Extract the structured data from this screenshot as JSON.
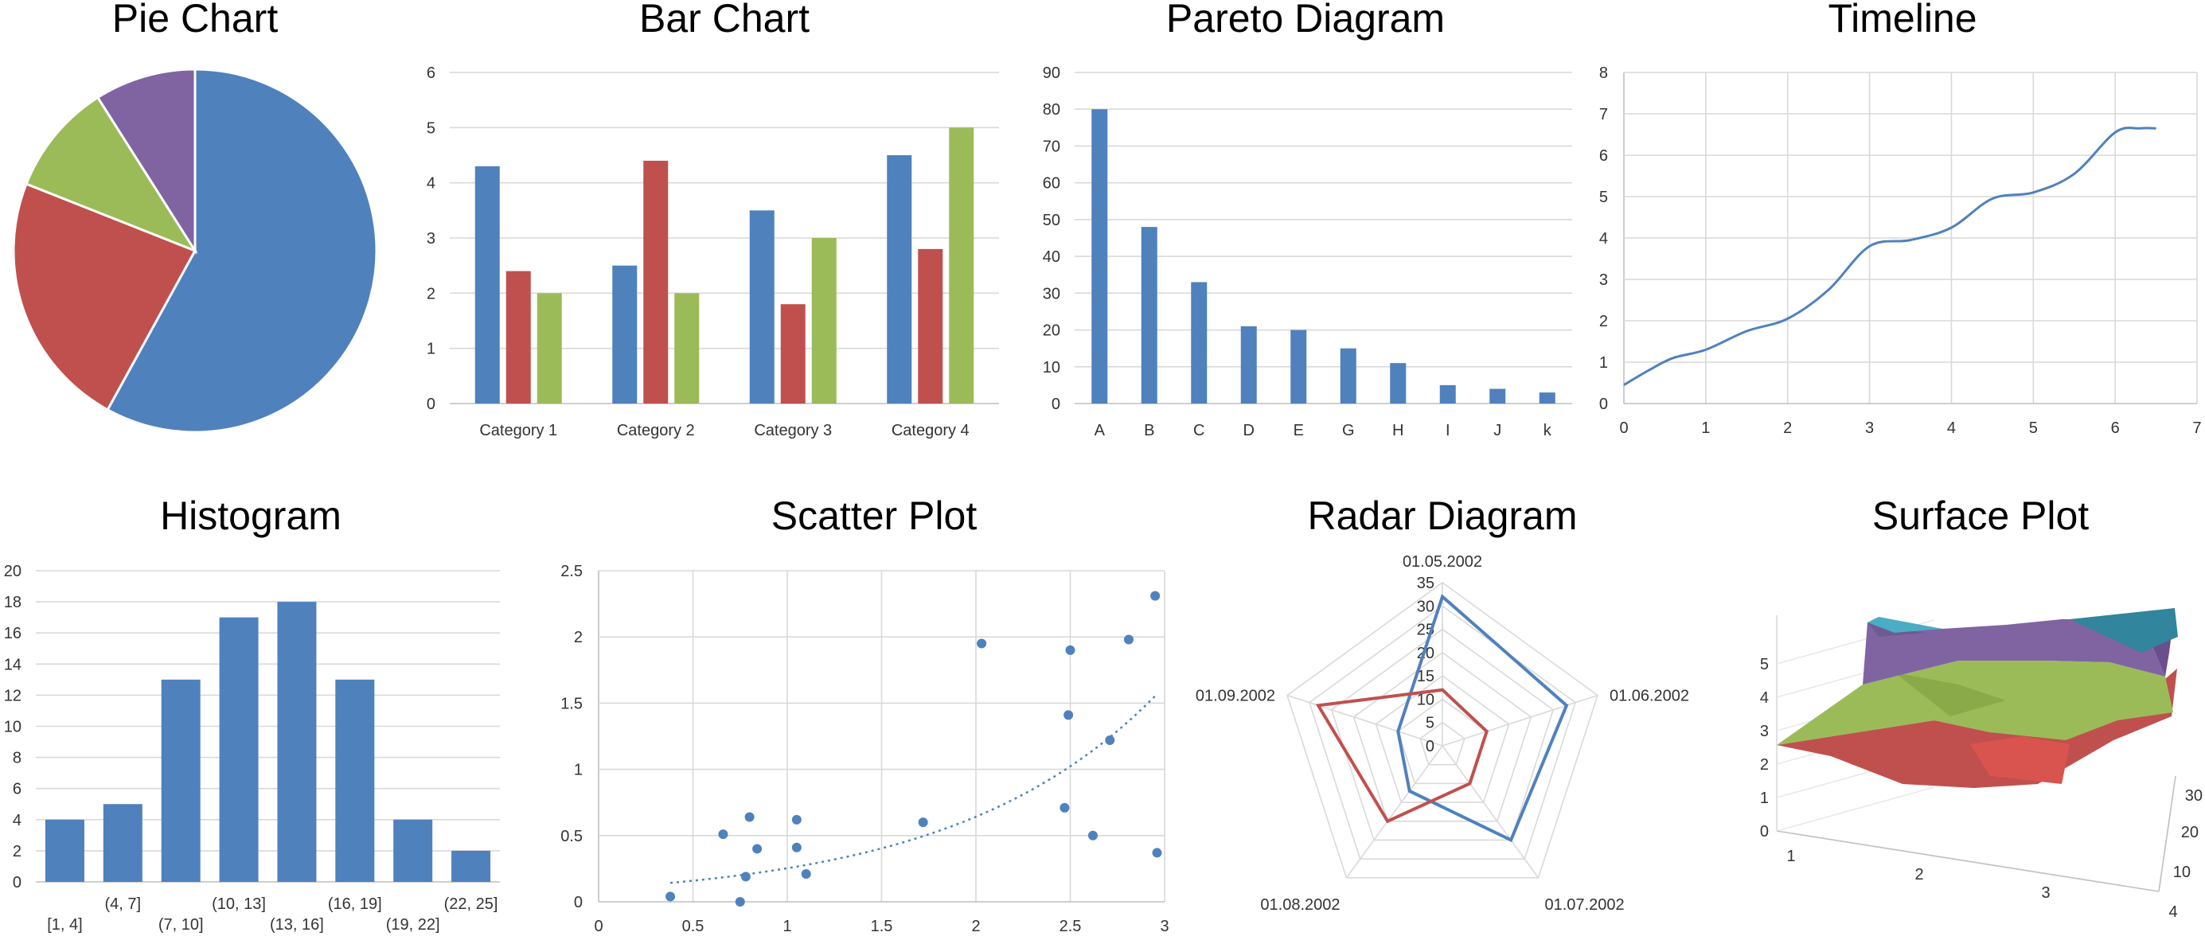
{
  "chart_data": [
    {
      "id": "pie",
      "type": "pie",
      "title": "Pie Chart",
      "values": [
        58,
        23,
        10,
        9
      ],
      "colors": [
        "#4f81bd",
        "#c0504d",
        "#9bbb59",
        "#8064a2"
      ]
    },
    {
      "id": "bar",
      "type": "bar",
      "title": "Bar Chart",
      "categories": [
        "Category 1",
        "Category 2",
        "Category 3",
        "Category 4"
      ],
      "series": [
        {
          "values": [
            4.3,
            2.5,
            3.5,
            4.5
          ],
          "color": "#4f81bd"
        },
        {
          "values": [
            2.4,
            4.4,
            1.8,
            2.8
          ],
          "color": "#c0504d"
        },
        {
          "values": [
            2,
            2,
            3,
            5
          ],
          "color": "#9bbb59"
        }
      ],
      "ylim": [
        0,
        6
      ],
      "yticks": [
        "0",
        "1",
        "2",
        "3",
        "4",
        "5",
        "6"
      ],
      "grid": true
    },
    {
      "id": "pareto",
      "type": "bar",
      "title": "Pareto Diagram",
      "categories": [
        "A",
        "B",
        "C",
        "D",
        "E",
        "G",
        "H",
        "I",
        "J",
        "k"
      ],
      "values": [
        80,
        48,
        33,
        21,
        20,
        15,
        11,
        5,
        4,
        3
      ],
      "color": "#4f81bd",
      "ylim": [
        0,
        90
      ],
      "yticks": [
        "0",
        "10",
        "20",
        "30",
        "40",
        "50",
        "60",
        "70",
        "80",
        "90"
      ],
      "grid": true
    },
    {
      "id": "timeline",
      "type": "line",
      "title": "Timeline",
      "x": [
        0,
        0.3,
        0.6,
        1,
        1.5,
        2,
        2.5,
        3,
        3.5,
        4,
        4.5,
        5,
        5.5,
        6,
        6.3,
        6.5
      ],
      "y": [
        0.45,
        0.8,
        1.1,
        1.3,
        1.75,
        2.05,
        2.75,
        3.8,
        3.95,
        4.25,
        4.95,
        5.1,
        5.55,
        6.55,
        6.65,
        6.65
      ],
      "color": "#4f81bd",
      "xlim": [
        0,
        7
      ],
      "ylim": [
        0,
        8
      ],
      "xticks": [
        "0",
        "1",
        "2",
        "3",
        "4",
        "5",
        "6",
        "7"
      ],
      "yticks": [
        "0",
        "1",
        "2",
        "3",
        "4",
        "5",
        "6",
        "7",
        "8"
      ],
      "grid": true
    },
    {
      "id": "histogram",
      "type": "bar",
      "title": "Histogram",
      "categories": [
        "[1, 4]",
        "(4, 7]",
        "(7, 10]",
        "(10, 13]",
        "(13, 16]",
        "(16, 19]",
        "(19, 22]",
        "(22, 25]"
      ],
      "values": [
        4,
        5,
        13,
        17,
        18,
        13,
        4,
        2
      ],
      "color": "#4f81bd",
      "ylim": [
        0,
        20
      ],
      "yticks": [
        "0",
        "2",
        "4",
        "6",
        "8",
        "10",
        "12",
        "14",
        "16",
        "18",
        "20"
      ],
      "grid": true
    },
    {
      "id": "scatter",
      "type": "scatter",
      "title": "Scatter Plot",
      "points": [
        [
          0.38,
          0.04
        ],
        [
          0.66,
          0.51
        ],
        [
          0.75,
          0.0
        ],
        [
          0.78,
          0.19
        ],
        [
          0.8,
          0.64
        ],
        [
          0.84,
          0.4
        ],
        [
          1.05,
          0.62
        ],
        [
          1.05,
          0.41
        ],
        [
          1.1,
          0.21
        ],
        [
          1.72,
          0.6
        ],
        [
          2.03,
          1.95
        ],
        [
          2.47,
          0.71
        ],
        [
          2.49,
          1.41
        ],
        [
          2.5,
          1.9
        ],
        [
          2.62,
          0.5
        ],
        [
          2.71,
          1.22
        ],
        [
          2.81,
          1.98
        ],
        [
          2.95,
          2.31
        ],
        [
          2.96,
          0.37
        ]
      ],
      "trend": {
        "type": "exponential",
        "a": 0.1,
        "b": 0.93
      },
      "color": "#4f81bd",
      "xlim": [
        0,
        3
      ],
      "ylim": [
        0,
        2.5
      ],
      "xticks": [
        "0",
        "0.5",
        "1",
        "1.5",
        "2",
        "2.5",
        "3"
      ],
      "yticks": [
        "0",
        "0.5",
        "1",
        "1.5",
        "2",
        "2.5"
      ],
      "grid": true
    },
    {
      "id": "radar",
      "type": "radar",
      "title": "Radar Diagram",
      "categories": [
        "01.05.2002",
        "01.06.2002",
        "01.07.2002",
        "01.08.2002",
        "01.09.2002"
      ],
      "series": [
        {
          "values": [
            32,
            28,
            25,
            12,
            10
          ],
          "color": "#4f81bd"
        },
        {
          "values": [
            12,
            10,
            10,
            20,
            28
          ],
          "color": "#c0504d"
        }
      ],
      "rlim": [
        0,
        35
      ],
      "rticks": [
        "0",
        "5",
        "10",
        "15",
        "20",
        "25",
        "30",
        "35"
      ]
    },
    {
      "id": "surface",
      "type": "surface",
      "title": "Surface Plot",
      "x_ticks": [
        "1",
        "2",
        "3",
        "4"
      ],
      "y_ticks": [
        "10",
        "20",
        "30"
      ],
      "z_ticks": [
        "0",
        "1",
        "2",
        "3",
        "4",
        "5"
      ],
      "band_colors": [
        "#c0504d",
        "#9bbb59",
        "#8064a2",
        "#4bacc6"
      ]
    }
  ]
}
